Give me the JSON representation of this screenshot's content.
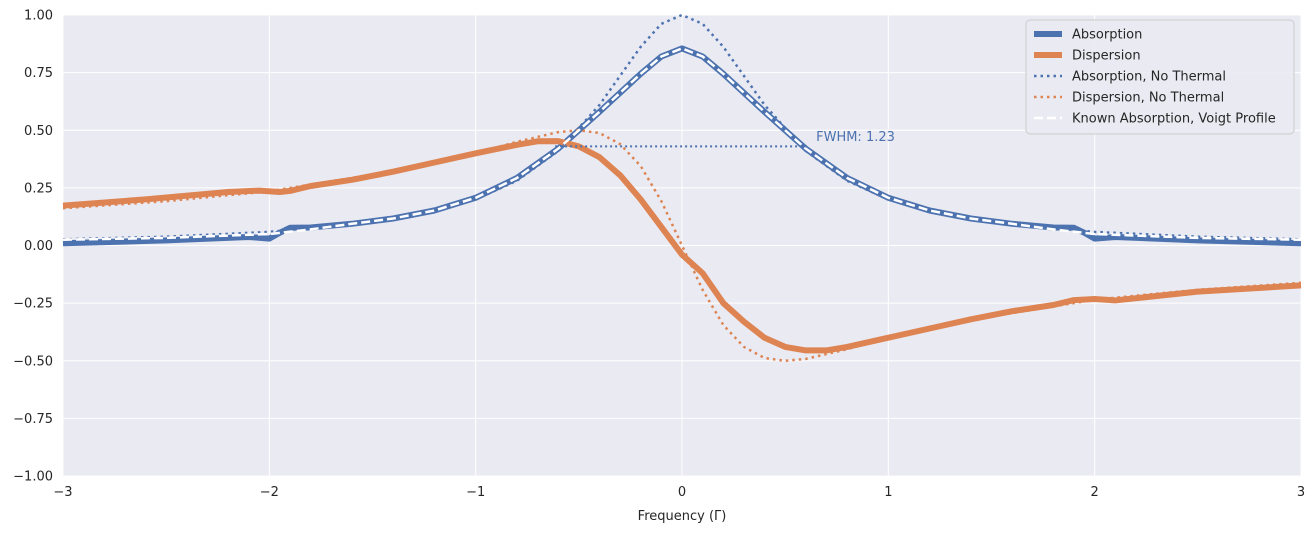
{
  "chart_data": {
    "type": "line",
    "xlabel": "Frequency (Γ)",
    "ylabel": "",
    "xlim": [
      -3,
      3
    ],
    "ylim": [
      -1,
      1
    ],
    "x_ticks": [
      -3,
      -2,
      -1,
      0,
      1,
      2,
      3
    ],
    "x_tick_labels": [
      "−3",
      "−2",
      "−1",
      "0",
      "1",
      "2",
      "3"
    ],
    "y_ticks": [
      -1,
      -0.75,
      -0.5,
      -0.25,
      0,
      0.25,
      0.5,
      0.75,
      1
    ],
    "y_tick_labels": [
      "−1.00",
      "−0.75",
      "−0.50",
      "−0.25",
      "0.00",
      "0.25",
      "0.50",
      "0.75",
      "1.00"
    ],
    "grid": true,
    "legend_position": "top-right",
    "series": [
      {
        "name": "Absorption",
        "color": "#4c72b0",
        "style": "solid-thick",
        "x": [
          -3,
          -2.5,
          -2.1,
          -2.0,
          -1.95,
          -1.9,
          -1.8,
          -1.6,
          -1.4,
          -1.2,
          -1.0,
          -0.8,
          -0.6,
          -0.4,
          -0.2,
          -0.1,
          0,
          0.1,
          0.2,
          0.4,
          0.6,
          0.8,
          1.0,
          1.2,
          1.4,
          1.6,
          1.8,
          1.9,
          1.95,
          2.0,
          2.1,
          2.5,
          3
        ],
        "y": [
          0.01,
          0.022,
          0.037,
          0.03,
          0.055,
          0.077,
          0.078,
          0.094,
          0.117,
          0.152,
          0.207,
          0.293,
          0.42,
          0.58,
          0.745,
          0.82,
          0.855,
          0.82,
          0.745,
          0.58,
          0.42,
          0.293,
          0.207,
          0.152,
          0.117,
          0.094,
          0.078,
          0.077,
          0.055,
          0.03,
          0.037,
          0.022,
          0.01
        ]
      },
      {
        "name": "Dispersion",
        "color": "#dd8452",
        "style": "solid-thick",
        "x": [
          -3,
          -2.6,
          -2.2,
          -2.05,
          -1.95,
          -1.9,
          -1.8,
          -1.6,
          -1.4,
          -1.2,
          -1.0,
          -0.8,
          -0.7,
          -0.6,
          -0.5,
          -0.4,
          -0.3,
          -0.2,
          -0.1,
          0,
          0.1,
          0.2,
          0.3,
          0.4,
          0.5,
          0.6,
          0.7,
          0.8,
          1.0,
          1.2,
          1.4,
          1.6,
          1.8,
          1.9,
          2.0,
          2.1,
          2.5,
          3
        ],
        "y": [
          0.173,
          0.2,
          0.232,
          0.238,
          0.232,
          0.237,
          0.258,
          0.285,
          0.32,
          0.36,
          0.4,
          0.437,
          0.452,
          0.453,
          0.43,
          0.383,
          0.305,
          0.2,
          0.08,
          -0.04,
          -0.12,
          -0.25,
          -0.33,
          -0.4,
          -0.44,
          -0.455,
          -0.455,
          -0.44,
          -0.4,
          -0.36,
          -0.32,
          -0.285,
          -0.258,
          -0.237,
          -0.232,
          -0.238,
          -0.2,
          -0.173
        ]
      },
      {
        "name": "Absorption, No Thermal",
        "color": "#4c72b0",
        "style": "dotted",
        "x": [
          -3,
          -2.5,
          -2.0,
          -1.5,
          -1.0,
          -0.8,
          -0.6,
          -0.4,
          -0.2,
          -0.1,
          0,
          0.1,
          0.2,
          0.4,
          0.6,
          0.8,
          1.0,
          1.5,
          2.0,
          2.5,
          3
        ],
        "y": [
          0.027,
          0.038,
          0.059,
          0.1,
          0.2,
          0.281,
          0.41,
          0.61,
          0.862,
          0.962,
          1.0,
          0.962,
          0.862,
          0.61,
          0.41,
          0.281,
          0.2,
          0.1,
          0.059,
          0.038,
          0.027
        ]
      },
      {
        "name": "Dispersion, No Thermal",
        "color": "#dd8452",
        "style": "dotted",
        "x": [
          -3,
          -2.5,
          -2.0,
          -1.5,
          -1.0,
          -0.8,
          -0.6,
          -0.5,
          -0.4,
          -0.3,
          -0.2,
          -0.1,
          0,
          0.1,
          0.2,
          0.3,
          0.4,
          0.5,
          0.6,
          0.8,
          1.0,
          1.5,
          2.0,
          2.5,
          3
        ],
        "y": [
          0.162,
          0.192,
          0.235,
          0.308,
          0.4,
          0.45,
          0.492,
          0.5,
          0.488,
          0.44,
          0.345,
          0.192,
          0.0,
          -0.192,
          -0.345,
          -0.44,
          -0.488,
          -0.5,
          -0.492,
          -0.45,
          -0.4,
          -0.308,
          -0.235,
          -0.192,
          -0.162
        ]
      },
      {
        "name": "Known Absorption, Voigt Profile",
        "color": "#ffffff",
        "style": "dashed",
        "x": [
          -3,
          -2.5,
          -2.0,
          -1.8,
          -1.6,
          -1.4,
          -1.2,
          -1.0,
          -0.8,
          -0.6,
          -0.4,
          -0.2,
          -0.1,
          0,
          0.1,
          0.2,
          0.4,
          0.6,
          0.8,
          1.0,
          1.2,
          1.4,
          1.6,
          1.8,
          2.0,
          2.5,
          3
        ],
        "y": [
          0.025,
          0.033,
          0.05,
          0.07,
          0.094,
          0.117,
          0.152,
          0.207,
          0.293,
          0.42,
          0.58,
          0.745,
          0.82,
          0.855,
          0.82,
          0.745,
          0.58,
          0.42,
          0.293,
          0.207,
          0.152,
          0.117,
          0.094,
          0.07,
          0.05,
          0.033,
          0.025
        ]
      }
    ],
    "annotations": [
      {
        "type": "hline",
        "y": 0.43,
        "x_start": -0.615,
        "x_end": 0.615,
        "color": "#4c72b0",
        "style": "dotted"
      },
      {
        "type": "text",
        "text": "FWHM: 1.23",
        "x": 0.65,
        "y": 0.47,
        "color": "#4c72b0"
      }
    ]
  }
}
